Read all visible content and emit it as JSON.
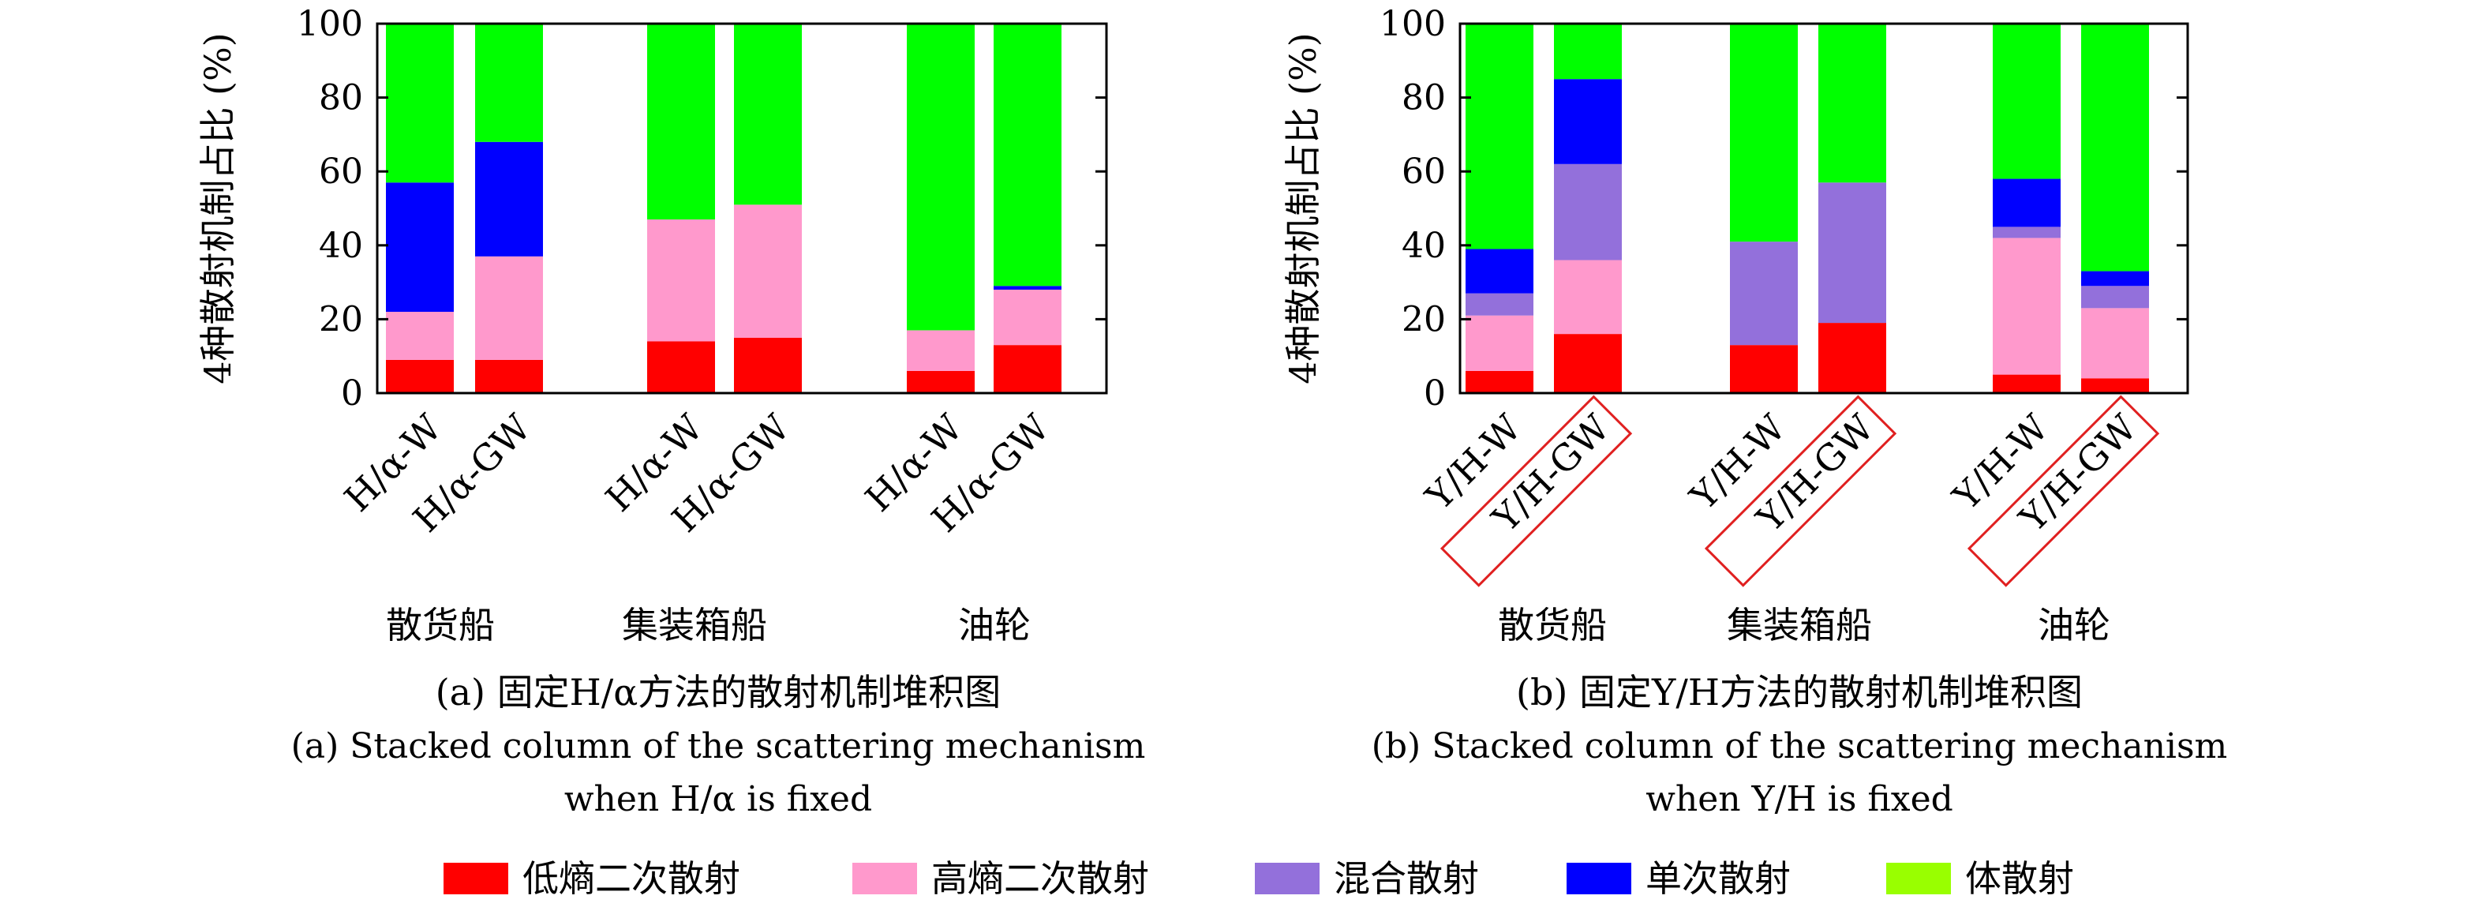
{
  "colors": {
    "低熵二次散射": "#ff0000",
    "高熵二次散射": "#ff99cc",
    "混合散射": "#9370db",
    "单次散射": "#0000ff",
    "体散射": "#00ff00",
    "体散射_legend": "#99ff00",
    "highlight_box": "#e02020"
  },
  "chart_data": [
    {
      "type": "bar",
      "stacked": true,
      "ylabel": "4种散射机制占比 (%)",
      "ylim": [
        0,
        100
      ],
      "yticks": [
        "0",
        "20",
        "40",
        "60",
        "80",
        "100"
      ],
      "groups": [
        "散货船",
        "集装箱船",
        "油轮"
      ],
      "categories": [
        "H/α-W",
        "H/α-GW",
        "H/α-W",
        "H/α-GW",
        "H/α-W",
        "H/α-GW"
      ],
      "category_highlight": [
        false,
        false,
        false,
        false,
        false,
        false
      ],
      "series": [
        {
          "name": "低熵二次散射",
          "values": [
            9,
            9,
            14,
            15,
            6,
            13
          ]
        },
        {
          "name": "高熵二次散射",
          "values": [
            13,
            28,
            33,
            36,
            11,
            15
          ]
        },
        {
          "name": "混合散射",
          "values": [
            0,
            0,
            0,
            0,
            0,
            0
          ]
        },
        {
          "name": "单次散射",
          "values": [
            35,
            31,
            0,
            0,
            0,
            1
          ]
        },
        {
          "name": "体散射",
          "values": [
            43,
            32,
            53,
            49,
            83,
            71
          ]
        }
      ],
      "caption_cn": "(a) 固定H/α方法的散射机制堆积图",
      "caption_en_1": "(a) Stacked column of the scattering mechanism",
      "caption_en_2": "when H/α is fixed"
    },
    {
      "type": "bar",
      "stacked": true,
      "ylabel": "4种散射机制占比 (%)",
      "ylim": [
        0,
        100
      ],
      "yticks": [
        "0",
        "20",
        "40",
        "60",
        "80",
        "100"
      ],
      "groups": [
        "散货船",
        "集装箱船",
        "油轮"
      ],
      "categories": [
        "Y/H-W",
        "Y/H-GW",
        "Y/H-W",
        "Y/H-GW",
        "Y/H-W",
        "Y/H-GW"
      ],
      "category_highlight": [
        false,
        true,
        false,
        true,
        false,
        true
      ],
      "series": [
        {
          "name": "低熵二次散射",
          "values": [
            6,
            16,
            13,
            19,
            5,
            4
          ]
        },
        {
          "name": "高熵二次散射",
          "values": [
            15,
            20,
            0,
            0,
            37,
            19
          ]
        },
        {
          "name": "混合散射",
          "values": [
            6,
            26,
            28,
            38,
            3,
            6
          ]
        },
        {
          "name": "单次散射",
          "values": [
            12,
            23,
            0,
            0,
            13,
            4
          ]
        },
        {
          "name": "体散射",
          "values": [
            61,
            15,
            59,
            43,
            42,
            67
          ]
        }
      ],
      "caption_cn": "(b) 固定Y/H方法的散射机制堆积图",
      "caption_en_1": "(b) Stacked column of the scattering mechanism",
      "caption_en_2": "when Y/H is fixed"
    }
  ],
  "legend": [
    "低熵二次散射",
    "高熵二次散射",
    "混合散射",
    "单次散射",
    "体散射"
  ]
}
